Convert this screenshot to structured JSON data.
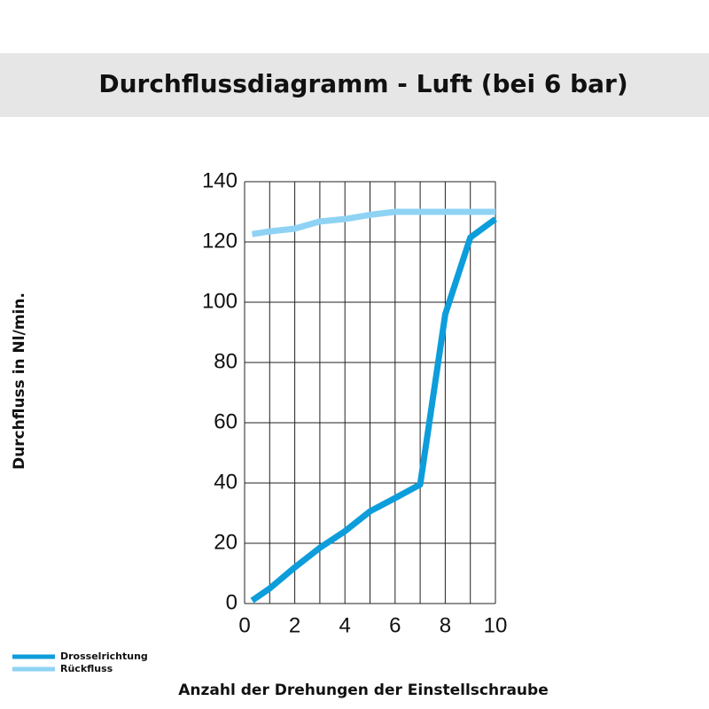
{
  "chart_data": {
    "type": "line",
    "title": "Durchflussdiagramm - Luft (bei 6 bar)",
    "x_label": "Anzahl der Drehungen der Einstellschraube",
    "y_label": "Durchfluss in Nl/min.",
    "x": [
      0.3,
      1,
      2,
      3,
      4,
      5,
      6,
      7,
      8,
      9,
      10
    ],
    "series": [
      {
        "name": "Drosselrichtung",
        "color": "#0d9ddb",
        "values": [
          1,
          5,
          12,
          18.5,
          24,
          30.6,
          35,
          39.5,
          96,
          121.5,
          127.6
        ]
      },
      {
        "name": "Rückfluss",
        "color": "#8fd3f4",
        "values": [
          122.6,
          123.5,
          124.4,
          126.8,
          127.6,
          129,
          130,
          130,
          130,
          130,
          130
        ]
      }
    ],
    "xlim": [
      0,
      10
    ],
    "xticks": [
      0,
      2,
      4,
      6,
      8,
      10
    ],
    "xgrid": [
      0,
      1,
      2,
      3,
      4,
      5,
      6,
      7,
      8,
      9,
      10
    ],
    "ylim": [
      0,
      140
    ],
    "yticks": [
      0,
      20,
      40,
      60,
      80,
      100,
      120,
      140
    ],
    "grid": true,
    "legend": "bottom-left"
  }
}
